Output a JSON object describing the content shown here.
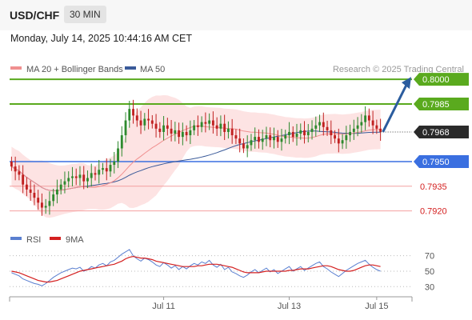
{
  "header": {
    "symbol": "USD/CHF",
    "timeframe": "30 MIN"
  },
  "timestamp": "Monday, July 14, 2025 10:44:16 AM CET",
  "legend": {
    "ma20": "MA 20 + Bollinger Bands",
    "ma50": "MA 50"
  },
  "credit": "Research © 2025 Trading Central",
  "colors": {
    "ma20": "#f09090",
    "ma50": "#3a5a99",
    "band_fill": "#fde0e0",
    "up": "#2e8a2e",
    "down": "#c02020",
    "resistance": "#5aaa1e",
    "pivot": "#3a6fe0",
    "support": "#f4a0a0",
    "arrow": "#2b5c9e",
    "rsi": "#5a7fd0",
    "rsi_ma": "#d42020"
  },
  "chart_data": {
    "type": "candlestick",
    "ylim": [
      0.7913,
      0.8003
    ],
    "current_price": 0.7968,
    "levels": [
      {
        "value": 0.8,
        "label": "0.8000",
        "kind": "resistance"
      },
      {
        "value": 0.7985,
        "label": "0.7985",
        "kind": "resistance"
      },
      {
        "value": 0.7968,
        "label": "0.7968",
        "kind": "current"
      },
      {
        "value": 0.795,
        "label": "0.7950",
        "kind": "pivot"
      },
      {
        "value": 0.7935,
        "label": "0.7935",
        "kind": "support"
      },
      {
        "value": 0.792,
        "label": "0.7920",
        "kind": "support"
      }
    ],
    "closes": [
      0.7947,
      0.7944,
      0.7942,
      0.7936,
      0.7933,
      0.7931,
      0.7928,
      0.7925,
      0.7922,
      0.7923,
      0.7926,
      0.793,
      0.7933,
      0.7936,
      0.7938,
      0.794,
      0.7941,
      0.794,
      0.7942,
      0.7938,
      0.794,
      0.7943,
      0.7942,
      0.7945,
      0.7946,
      0.7944,
      0.7948,
      0.795,
      0.7958,
      0.7966,
      0.7975,
      0.7982,
      0.7978,
      0.7975,
      0.7972,
      0.7976,
      0.7975,
      0.7973,
      0.797,
      0.7968,
      0.7972,
      0.797,
      0.7967,
      0.7969,
      0.7965,
      0.7968,
      0.7966,
      0.7969,
      0.7972,
      0.7971,
      0.7974,
      0.7973,
      0.7975,
      0.7972,
      0.797,
      0.7973,
      0.7968,
      0.797,
      0.7966,
      0.7964,
      0.7961,
      0.7958,
      0.796,
      0.7963,
      0.7965,
      0.7962,
      0.7964,
      0.7966,
      0.7963,
      0.7965,
      0.7962,
      0.7964,
      0.7966,
      0.7968,
      0.7965,
      0.7967,
      0.7969,
      0.7966,
      0.7968,
      0.797,
      0.7972,
      0.7974,
      0.7971,
      0.7969,
      0.7966,
      0.7964,
      0.7961,
      0.7963,
      0.7966,
      0.7968,
      0.797,
      0.7972,
      0.7974,
      0.7978,
      0.7975,
      0.7972,
      0.797,
      0.7968
    ],
    "x_labels": [
      {
        "label": "Jul 11",
        "index": 40
      },
      {
        "label": "Jul 13",
        "index": 73
      },
      {
        "label": "Jul 15",
        "index": 96
      }
    ],
    "projection": {
      "from": 0.7968,
      "to": 0.8
    }
  },
  "rsi_chart": {
    "legend": {
      "rsi": "RSI",
      "ma": "9MA"
    },
    "ylim": [
      22,
      80
    ],
    "levels": [
      {
        "value": 70,
        "label": "70"
      },
      {
        "value": 50,
        "label": "50"
      },
      {
        "value": 30,
        "label": "30"
      }
    ],
    "rsi": [
      48,
      46,
      44,
      40,
      38,
      36,
      34,
      33,
      31,
      34,
      38,
      42,
      45,
      48,
      50,
      52,
      54,
      53,
      55,
      50,
      52,
      56,
      54,
      58,
      60,
      57,
      62,
      64,
      68,
      72,
      75,
      78,
      70,
      66,
      63,
      67,
      65,
      62,
      58,
      56,
      61,
      58,
      54,
      57,
      52,
      56,
      53,
      57,
      60,
      58,
      62,
      60,
      64,
      58,
      55,
      59,
      52,
      55,
      49,
      47,
      44,
      42,
      45,
      49,
      52,
      48,
      51,
      54,
      49,
      52,
      47,
      50,
      53,
      56,
      50,
      53,
      56,
      51,
      54,
      57,
      60,
      62,
      56,
      53,
      49,
      46,
      43,
      47,
      51,
      54,
      57,
      60,
      62,
      64,
      59,
      55,
      52,
      50
    ],
    "ma": [
      50,
      49,
      48,
      46,
      44,
      42,
      40,
      38,
      37,
      36,
      36,
      37,
      38,
      40,
      42,
      44,
      46,
      48,
      50,
      51,
      52,
      53,
      54,
      55,
      56,
      57,
      58,
      59,
      61,
      63,
      66,
      68,
      69,
      68,
      67,
      67,
      66,
      65,
      63,
      62,
      61,
      60,
      59,
      58,
      57,
      56,
      56,
      56,
      56,
      57,
      57,
      58,
      59,
      59,
      59,
      58,
      57,
      56,
      55,
      53,
      51,
      49,
      48,
      48,
      48,
      48,
      49,
      50,
      50,
      50,
      50,
      50,
      50,
      51,
      51,
      52,
      53,
      53,
      53,
      54,
      55,
      56,
      57,
      57,
      56,
      54,
      52,
      51,
      50,
      50,
      51,
      53,
      55,
      57,
      58,
      58,
      57,
      56
    ]
  }
}
